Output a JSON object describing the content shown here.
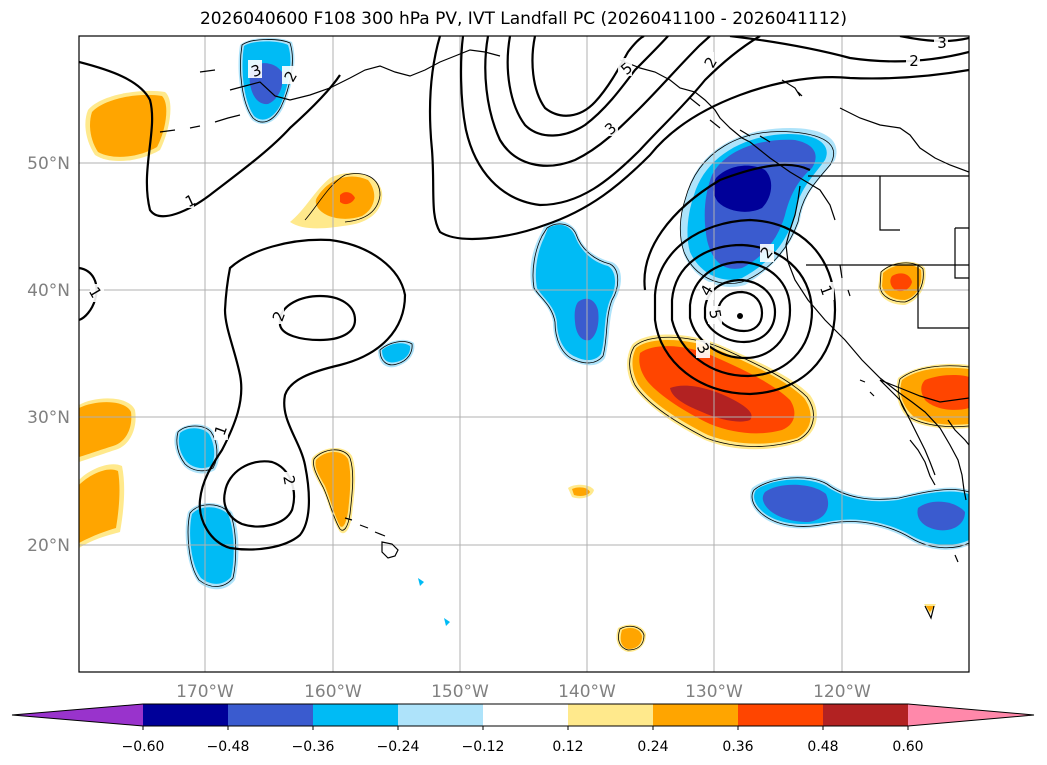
{
  "title": "2026040600 F108 300 hPa PV, IVT Landfall PC (2026041100 - 2026041112)",
  "axes": {
    "lon_labels": [
      "170°W",
      "160°W",
      "150°W",
      "140°W",
      "130°W",
      "120°W"
    ],
    "lat_labels": [
      "50°N",
      "40°N",
      "30°N",
      "20°N"
    ]
  },
  "colorbar": {
    "colors": [
      "#9933cc",
      "#000099",
      "#3a5bcf",
      "#00bbf5",
      "#aee3fa",
      "#ffffff",
      "#ffe98c",
      "#ffa500",
      "#ff4500",
      "#b22222",
      "#ff88aa"
    ],
    "tick_labels": [
      "−0.60",
      "−0.48",
      "−0.36",
      "−0.24",
      "−0.12",
      "0.12",
      "0.24",
      "0.36",
      "0.48",
      "0.60"
    ]
  },
  "contour_labels": [
    "1",
    "1",
    "1",
    "1",
    "2",
    "2",
    "2",
    "2",
    "2",
    "2",
    "3",
    "3",
    "3",
    "3",
    "4",
    "5",
    "5"
  ],
  "colors": {
    "grid": "#b0b0b0",
    "contour": "#000000",
    "coast": "#000000"
  }
}
